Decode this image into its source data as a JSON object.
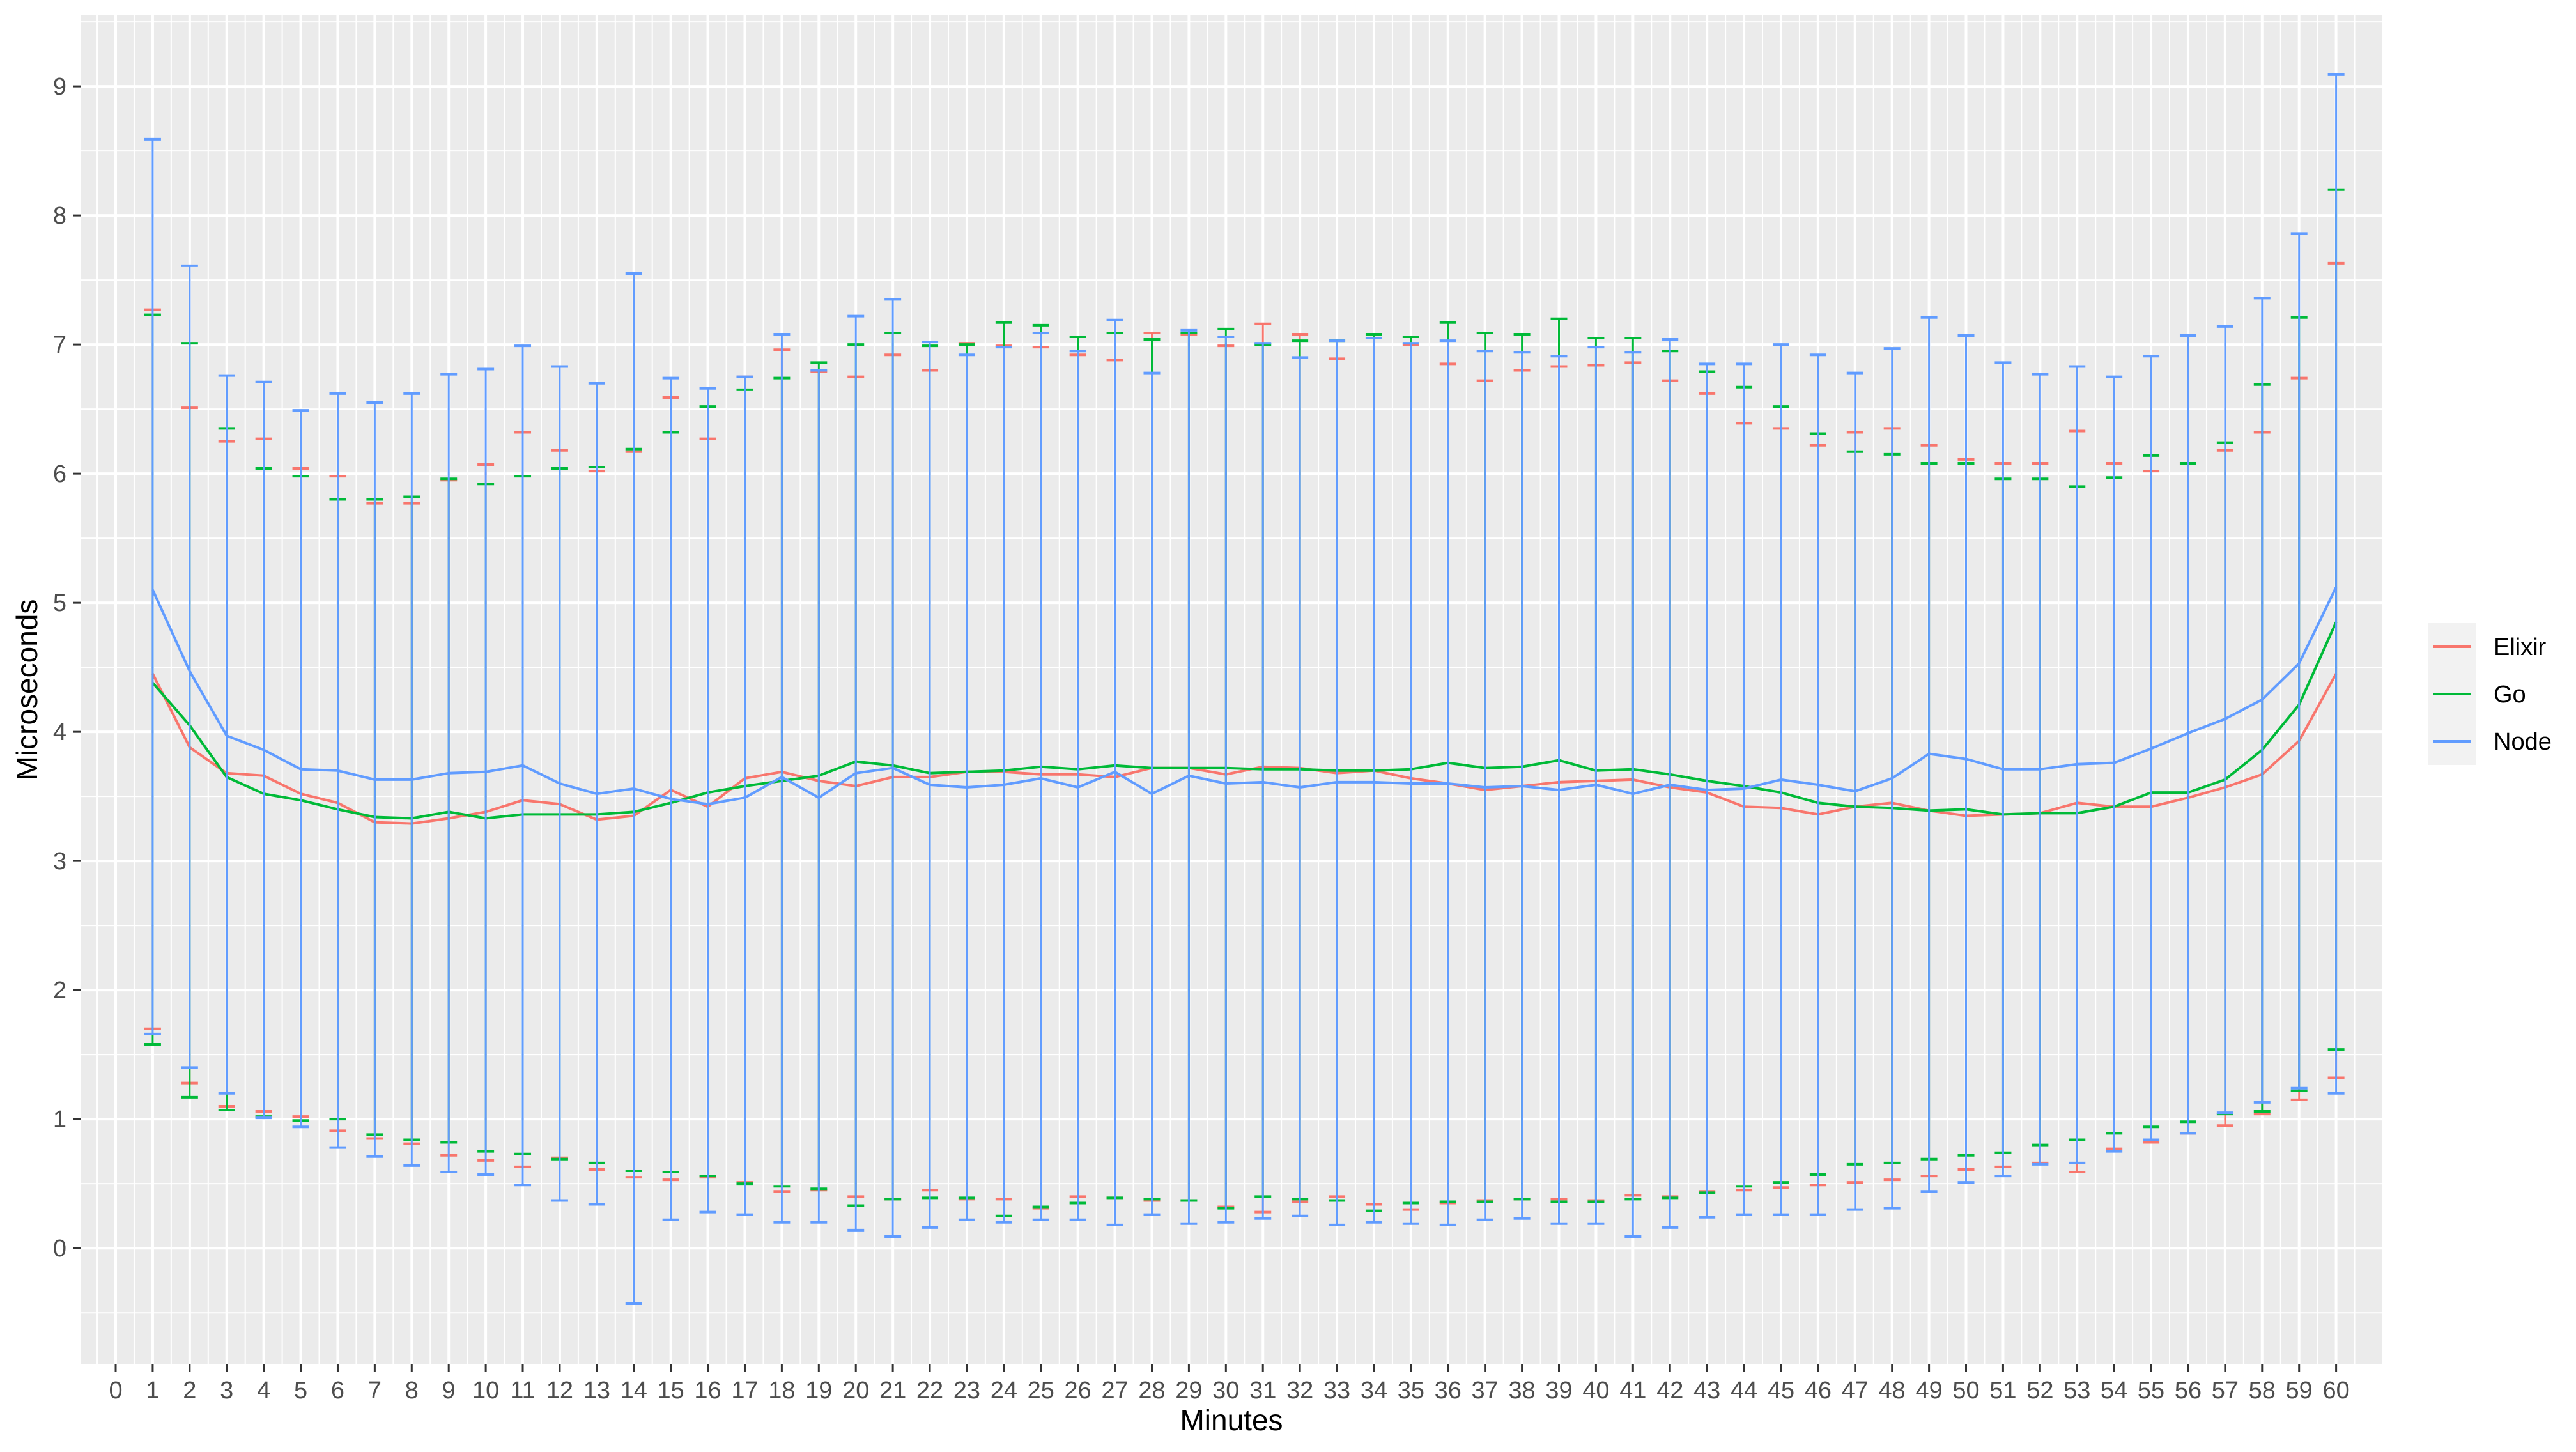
{
  "chart_data": {
    "type": "line",
    "title": "",
    "xlabel": "Minutes",
    "ylabel": "Microseconds",
    "xlim": [
      -0.95,
      61.25
    ],
    "ylim": [
      -0.9,
      9.55
    ],
    "grid": true,
    "error_bars": true,
    "legend_position": "right",
    "x_ticks": [
      0,
      1,
      2,
      3,
      4,
      5,
      6,
      7,
      8,
      9,
      10,
      11,
      12,
      13,
      14,
      15,
      16,
      17,
      18,
      19,
      20,
      21,
      22,
      23,
      24,
      25,
      26,
      27,
      28,
      29,
      30,
      31,
      32,
      33,
      34,
      35,
      36,
      37,
      38,
      39,
      40,
      41,
      42,
      43,
      44,
      45,
      46,
      47,
      48,
      49,
      50,
      51,
      52,
      53,
      54,
      55,
      56,
      57,
      58,
      59,
      60
    ],
    "x_tick_labels": [
      "0",
      "1",
      "2",
      "3",
      "4",
      "5",
      "6",
      "7",
      "8",
      "9",
      "10",
      "11",
      "12",
      "13",
      "14",
      "15",
      "16",
      "17",
      "18",
      "19",
      "20",
      "21",
      "22",
      "23",
      "24",
      "25",
      "26",
      "27",
      "28",
      "29",
      "30",
      "31",
      "32",
      "33",
      "34",
      "35",
      "36",
      "37",
      "38",
      "39",
      "40",
      "41",
      "42",
      "43",
      "44",
      "45",
      "46",
      "47",
      "48",
      "49",
      "50",
      "51",
      "52",
      "53",
      "54",
      "55",
      "56",
      "57",
      "58",
      "59",
      "60"
    ],
    "y_ticks": [
      0,
      1,
      2,
      3,
      4,
      5,
      6,
      7,
      8,
      9
    ],
    "y_tick_labels": [
      "0",
      "1",
      "2",
      "3",
      "4",
      "5",
      "6",
      "7",
      "8",
      "9"
    ],
    "x": [
      1,
      2,
      3,
      4,
      5,
      6,
      7,
      8,
      9,
      10,
      11,
      12,
      13,
      14,
      15,
      16,
      17,
      18,
      19,
      20,
      21,
      22,
      23,
      24,
      25,
      26,
      27,
      28,
      29,
      30,
      31,
      32,
      33,
      34,
      35,
      36,
      37,
      38,
      39,
      40,
      41,
      42,
      43,
      44,
      45,
      46,
      47,
      48,
      49,
      50,
      51,
      52,
      53,
      54,
      55,
      56,
      57,
      58,
      59,
      60
    ],
    "series": [
      {
        "name": "Elixir",
        "color": "#F8766D",
        "values": [
          4.45,
          3.88,
          3.68,
          3.66,
          3.52,
          3.45,
          3.3,
          3.29,
          3.33,
          3.38,
          3.47,
          3.44,
          3.32,
          3.35,
          3.55,
          3.42,
          3.64,
          3.69,
          3.62,
          3.58,
          3.65,
          3.65,
          3.69,
          3.69,
          3.67,
          3.67,
          3.65,
          3.72,
          3.72,
          3.67,
          3.73,
          3.72,
          3.68,
          3.7,
          3.64,
          3.6,
          3.55,
          3.58,
          3.61,
          3.62,
          3.63,
          3.57,
          3.53,
          3.42,
          3.41,
          3.36,
          3.42,
          3.45,
          3.39,
          3.35,
          3.36,
          3.37,
          3.45,
          3.42,
          3.42,
          3.49,
          3.57,
          3.67,
          3.93,
          4.45
        ],
        "upper": [
          7.27,
          6.51,
          6.25,
          6.27,
          6.04,
          5.98,
          5.77,
          5.77,
          5.95,
          6.07,
          6.32,
          6.18,
          6.02,
          6.17,
          6.59,
          6.27,
          6.75,
          6.96,
          6.79,
          6.75,
          6.92,
          6.8,
          7.01,
          6.99,
          6.98,
          6.92,
          6.88,
          7.09,
          7.08,
          6.99,
          7.16,
          7.08,
          6.89,
          7.05,
          7.0,
          6.85,
          6.72,
          6.8,
          6.83,
          6.84,
          6.86,
          6.72,
          6.62,
          6.39,
          6.35,
          6.22,
          6.32,
          6.35,
          6.22,
          6.11,
          6.08,
          6.08,
          6.33,
          6.08,
          6.02,
          6.08,
          6.18,
          6.32,
          6.74,
          7.63
        ],
        "lower": [
          1.7,
          1.28,
          1.1,
          1.06,
          1.02,
          0.91,
          0.85,
          0.81,
          0.72,
          0.68,
          0.63,
          0.7,
          0.61,
          0.55,
          0.53,
          0.55,
          0.51,
          0.44,
          0.45,
          0.4,
          0.38,
          0.45,
          0.38,
          0.38,
          0.31,
          0.4,
          0.39,
          0.37,
          0.37,
          0.32,
          0.28,
          0.36,
          0.4,
          0.34,
          0.3,
          0.35,
          0.37,
          0.38,
          0.38,
          0.37,
          0.41,
          0.4,
          0.44,
          0.45,
          0.47,
          0.49,
          0.51,
          0.53,
          0.56,
          0.61,
          0.63,
          0.66,
          0.59,
          0.77,
          0.82,
          0.89,
          0.95,
          1.04,
          1.15,
          1.32
        ]
      },
      {
        "name": "Go",
        "color": "#00BA38",
        "values": [
          4.38,
          4.05,
          3.65,
          3.52,
          3.47,
          3.4,
          3.34,
          3.33,
          3.38,
          3.33,
          3.36,
          3.36,
          3.36,
          3.38,
          3.45,
          3.53,
          3.58,
          3.62,
          3.66,
          3.77,
          3.74,
          3.68,
          3.69,
          3.7,
          3.73,
          3.71,
          3.74,
          3.72,
          3.72,
          3.72,
          3.71,
          3.71,
          3.7,
          3.7,
          3.71,
          3.76,
          3.72,
          3.73,
          3.78,
          3.7,
          3.71,
          3.67,
          3.62,
          3.58,
          3.53,
          3.45,
          3.42,
          3.41,
          3.39,
          3.4,
          3.36,
          3.37,
          3.37,
          3.42,
          3.53,
          3.53,
          3.63,
          3.86,
          4.21,
          4.85
        ],
        "upper": [
          7.23,
          7.01,
          6.35,
          6.04,
          5.98,
          5.8,
          5.8,
          5.82,
          5.96,
          5.92,
          5.98,
          6.04,
          6.05,
          6.19,
          6.32,
          6.52,
          6.65,
          6.74,
          6.86,
          7.0,
          7.09,
          6.99,
          7.0,
          7.17,
          7.15,
          7.06,
          7.09,
          7.04,
          7.09,
          7.12,
          7.0,
          7.03,
          7.03,
          7.08,
          7.06,
          7.17,
          7.09,
          7.08,
          7.2,
          7.05,
          7.05,
          6.95,
          6.79,
          6.67,
          6.52,
          6.31,
          6.17,
          6.15,
          6.08,
          6.08,
          5.96,
          5.96,
          5.9,
          5.97,
          6.14,
          6.08,
          6.24,
          6.69,
          7.21,
          8.2
        ],
        "lower": [
          1.58,
          1.17,
          1.07,
          1.02,
          0.99,
          1.0,
          0.88,
          0.84,
          0.82,
          0.75,
          0.73,
          0.69,
          0.66,
          0.6,
          0.59,
          0.56,
          0.5,
          0.48,
          0.46,
          0.33,
          0.38,
          0.39,
          0.39,
          0.25,
          0.32,
          0.35,
          0.39,
          0.38,
          0.37,
          0.31,
          0.4,
          0.38,
          0.37,
          0.29,
          0.35,
          0.36,
          0.36,
          0.38,
          0.36,
          0.36,
          0.38,
          0.39,
          0.43,
          0.48,
          0.51,
          0.57,
          0.65,
          0.66,
          0.69,
          0.72,
          0.74,
          0.8,
          0.84,
          0.89,
          0.94,
          0.98,
          1.04,
          1.06,
          1.22,
          1.54
        ]
      },
      {
        "name": "Node",
        "color": "#619CFF",
        "values": [
          5.1,
          4.47,
          3.97,
          3.86,
          3.71,
          3.7,
          3.63,
          3.63,
          3.68,
          3.69,
          3.74,
          3.6,
          3.52,
          3.56,
          3.48,
          3.44,
          3.49,
          3.65,
          3.49,
          3.68,
          3.72,
          3.59,
          3.57,
          3.59,
          3.64,
          3.57,
          3.69,
          3.52,
          3.66,
          3.6,
          3.61,
          3.57,
          3.61,
          3.61,
          3.6,
          3.6,
          3.57,
          3.58,
          3.55,
          3.59,
          3.52,
          3.59,
          3.55,
          3.56,
          3.63,
          3.59,
          3.54,
          3.64,
          3.83,
          3.79,
          3.71,
          3.71,
          3.75,
          3.76,
          3.87,
          3.99,
          4.1,
          4.25,
          4.53,
          5.12
        ],
        "upper": [
          8.59,
          7.61,
          6.76,
          6.71,
          6.49,
          6.62,
          6.55,
          6.62,
          6.77,
          6.81,
          6.99,
          6.83,
          6.7,
          7.55,
          6.74,
          6.66,
          6.75,
          7.08,
          6.8,
          7.22,
          7.35,
          7.02,
          6.92,
          6.98,
          7.09,
          6.95,
          7.19,
          6.78,
          7.11,
          7.06,
          7.01,
          6.9,
          7.03,
          7.05,
          7.01,
          7.03,
          6.95,
          6.94,
          6.91,
          6.98,
          6.94,
          7.04,
          6.85,
          6.85,
          7.0,
          6.92,
          6.78,
          6.97,
          7.21,
          7.07,
          6.86,
          6.77,
          6.83,
          6.75,
          6.91,
          7.07,
          7.14,
          7.36,
          7.86,
          9.09
        ],
        "lower": [
          1.66,
          1.4,
          1.2,
          1.01,
          0.94,
          0.78,
          0.71,
          0.64,
          0.59,
          0.57,
          0.49,
          0.37,
          0.34,
          -0.43,
          0.22,
          0.28,
          0.26,
          0.2,
          0.2,
          0.14,
          0.09,
          0.16,
          0.22,
          0.2,
          0.22,
          0.22,
          0.18,
          0.26,
          0.19,
          0.2,
          0.23,
          0.25,
          0.18,
          0.2,
          0.19,
          0.18,
          0.22,
          0.23,
          0.19,
          0.19,
          0.09,
          0.16,
          0.24,
          0.26,
          0.26,
          0.26,
          0.3,
          0.31,
          0.44,
          0.51,
          0.56,
          0.65,
          0.66,
          0.75,
          0.84,
          0.89,
          1.05,
          1.13,
          1.24,
          1.2
        ]
      }
    ]
  }
}
